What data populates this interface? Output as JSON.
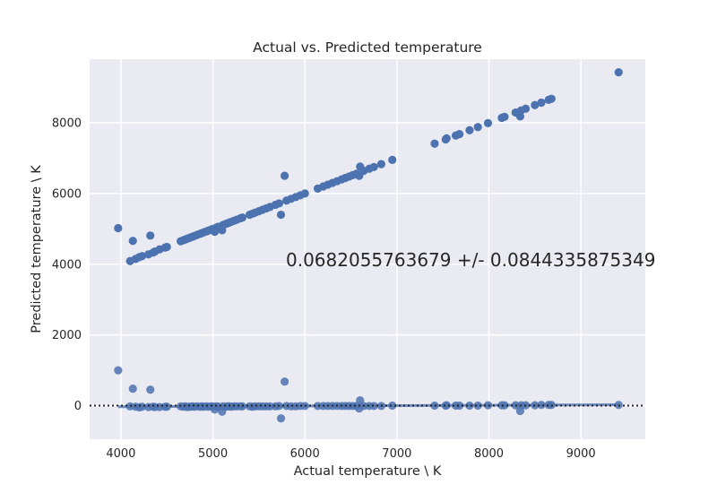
{
  "chart_data": {
    "type": "scatter",
    "title": "Actual vs. Predicted temperature",
    "xlabel": "Actual temperature \\ K",
    "ylabel": "Predicted temperature \\ K",
    "xlim": [
      3660,
      9700
    ],
    "ylim": [
      -950,
      9800
    ],
    "xticks": [
      4000,
      5000,
      6000,
      7000,
      8000,
      9000
    ],
    "yticks": [
      0,
      2000,
      4000,
      6000,
      8000
    ],
    "grid": true,
    "annotation": "0.0682055763679 +/- 0.0844335875349",
    "colors": {
      "points": "#4c72b0",
      "background": "#eaeaf2",
      "grid": "#ffffff",
      "zero_line": "#262626"
    },
    "series": [
      {
        "role": "predicted",
        "points": [
          [
            3970,
            5020
          ],
          [
            4100,
            4090
          ],
          [
            4130,
            4660
          ],
          [
            4160,
            4150
          ],
          [
            4200,
            4200
          ],
          [
            4230,
            4230
          ],
          [
            4300,
            4280
          ],
          [
            4320,
            4810
          ],
          [
            4350,
            4330
          ],
          [
            4370,
            4360
          ],
          [
            4420,
            4420
          ],
          [
            4480,
            4470
          ],
          [
            4500,
            4490
          ],
          [
            4650,
            4650
          ],
          [
            4680,
            4680
          ],
          [
            4700,
            4700
          ],
          [
            4720,
            4720
          ],
          [
            4740,
            4740
          ],
          [
            4760,
            4760
          ],
          [
            4780,
            4780
          ],
          [
            4800,
            4800
          ],
          [
            4830,
            4830
          ],
          [
            4860,
            4860
          ],
          [
            4880,
            4880
          ],
          [
            4900,
            4900
          ],
          [
            4930,
            4930
          ],
          [
            4950,
            4950
          ],
          [
            4980,
            4980
          ],
          [
            5000,
            5000
          ],
          [
            5020,
            4920
          ],
          [
            5040,
            5040
          ],
          [
            5060,
            5060
          ],
          [
            5100,
            4960
          ],
          [
            5110,
            5110
          ],
          [
            5140,
            5140
          ],
          [
            5160,
            5160
          ],
          [
            5180,
            5180
          ],
          [
            5200,
            5200
          ],
          [
            5230,
            5230
          ],
          [
            5260,
            5260
          ],
          [
            5300,
            5300
          ],
          [
            5320,
            5320
          ],
          [
            5400,
            5400
          ],
          [
            5430,
            5430
          ],
          [
            5460,
            5460
          ],
          [
            5500,
            5500
          ],
          [
            5540,
            5540
          ],
          [
            5580,
            5580
          ],
          [
            5620,
            5620
          ],
          [
            5680,
            5680
          ],
          [
            5720,
            5720
          ],
          [
            5740,
            5400
          ],
          [
            5780,
            6500
          ],
          [
            5800,
            5800
          ],
          [
            5850,
            5850
          ],
          [
            5900,
            5900
          ],
          [
            5950,
            5950
          ],
          [
            6000,
            6000
          ],
          [
            6140,
            6140
          ],
          [
            6200,
            6200
          ],
          [
            6250,
            6250
          ],
          [
            6300,
            6300
          ],
          [
            6350,
            6350
          ],
          [
            6400,
            6400
          ],
          [
            6440,
            6440
          ],
          [
            6480,
            6480
          ],
          [
            6520,
            6520
          ],
          [
            6560,
            6560
          ],
          [
            6590,
            6500
          ],
          [
            6600,
            6760
          ],
          [
            6640,
            6640
          ],
          [
            6700,
            6700
          ],
          [
            6750,
            6750
          ],
          [
            6830,
            6830
          ],
          [
            6950,
            6950
          ],
          [
            7410,
            7410
          ],
          [
            7530,
            7530
          ],
          [
            7540,
            7560
          ],
          [
            7640,
            7640
          ],
          [
            7680,
            7680
          ],
          [
            7790,
            7790
          ],
          [
            7880,
            7880
          ],
          [
            7990,
            7990
          ],
          [
            8140,
            8140
          ],
          [
            8170,
            8170
          ],
          [
            8290,
            8290
          ],
          [
            8340,
            8180
          ],
          [
            8350,
            8350
          ],
          [
            8400,
            8400
          ],
          [
            8500,
            8500
          ],
          [
            8570,
            8570
          ],
          [
            8650,
            8650
          ],
          [
            8680,
            8680
          ],
          [
            9410,
            9430
          ]
        ]
      },
      {
        "role": "residual",
        "points": [
          [
            3970,
            1000
          ],
          [
            4100,
            -20
          ],
          [
            4130,
            480
          ],
          [
            4160,
            -30
          ],
          [
            4200,
            -50
          ],
          [
            4230,
            -30
          ],
          [
            4300,
            -40
          ],
          [
            4320,
            450
          ],
          [
            4350,
            -30
          ],
          [
            4370,
            -40
          ],
          [
            4420,
            -40
          ],
          [
            4480,
            -30
          ],
          [
            4500,
            -30
          ],
          [
            4650,
            -20
          ],
          [
            4680,
            -30
          ],
          [
            4700,
            -20
          ],
          [
            4720,
            -40
          ],
          [
            4740,
            -30
          ],
          [
            4760,
            -30
          ],
          [
            4780,
            -20
          ],
          [
            4800,
            -30
          ],
          [
            4830,
            -20
          ],
          [
            4860,
            -30
          ],
          [
            4880,
            -20
          ],
          [
            4900,
            -30
          ],
          [
            4930,
            -20
          ],
          [
            4950,
            -30
          ],
          [
            4980,
            -20
          ],
          [
            5000,
            -20
          ],
          [
            5020,
            -110
          ],
          [
            5040,
            -20
          ],
          [
            5060,
            -30
          ],
          [
            5100,
            -170
          ],
          [
            5110,
            -20
          ],
          [
            5140,
            -30
          ],
          [
            5160,
            -20
          ],
          [
            5180,
            -20
          ],
          [
            5200,
            -30
          ],
          [
            5230,
            -20
          ],
          [
            5260,
            -20
          ],
          [
            5300,
            -20
          ],
          [
            5320,
            -20
          ],
          [
            5400,
            -20
          ],
          [
            5430,
            -30
          ],
          [
            5460,
            -20
          ],
          [
            5500,
            -20
          ],
          [
            5540,
            -20
          ],
          [
            5580,
            -20
          ],
          [
            5620,
            -20
          ],
          [
            5680,
            -20
          ],
          [
            5720,
            -10
          ],
          [
            5740,
            -360
          ],
          [
            5780,
            680
          ],
          [
            5800,
            -10
          ],
          [
            5850,
            -20
          ],
          [
            5900,
            -20
          ],
          [
            5950,
            -10
          ],
          [
            6000,
            -10
          ],
          [
            6140,
            -10
          ],
          [
            6200,
            -10
          ],
          [
            6250,
            -10
          ],
          [
            6300,
            -10
          ],
          [
            6350,
            -10
          ],
          [
            6400,
            -10
          ],
          [
            6440,
            -10
          ],
          [
            6480,
            -10
          ],
          [
            6520,
            -10
          ],
          [
            6560,
            -10
          ],
          [
            6590,
            -80
          ],
          [
            6600,
            150
          ],
          [
            6640,
            -10
          ],
          [
            6700,
            -10
          ],
          [
            6750,
            -10
          ],
          [
            6830,
            -10
          ],
          [
            6950,
            0
          ],
          [
            7410,
            0
          ],
          [
            7530,
            0
          ],
          [
            7540,
            10
          ],
          [
            7640,
            0
          ],
          [
            7680,
            0
          ],
          [
            7790,
            0
          ],
          [
            7880,
            0
          ],
          [
            7990,
            10
          ],
          [
            8140,
            10
          ],
          [
            8170,
            10
          ],
          [
            8290,
            10
          ],
          [
            8340,
            -150
          ],
          [
            8350,
            10
          ],
          [
            8400,
            10
          ],
          [
            8500,
            10
          ],
          [
            8570,
            20
          ],
          [
            8650,
            20
          ],
          [
            8680,
            20
          ],
          [
            9410,
            20
          ]
        ]
      }
    ],
    "zero_line": {
      "y": 0,
      "style": "dotted"
    }
  }
}
